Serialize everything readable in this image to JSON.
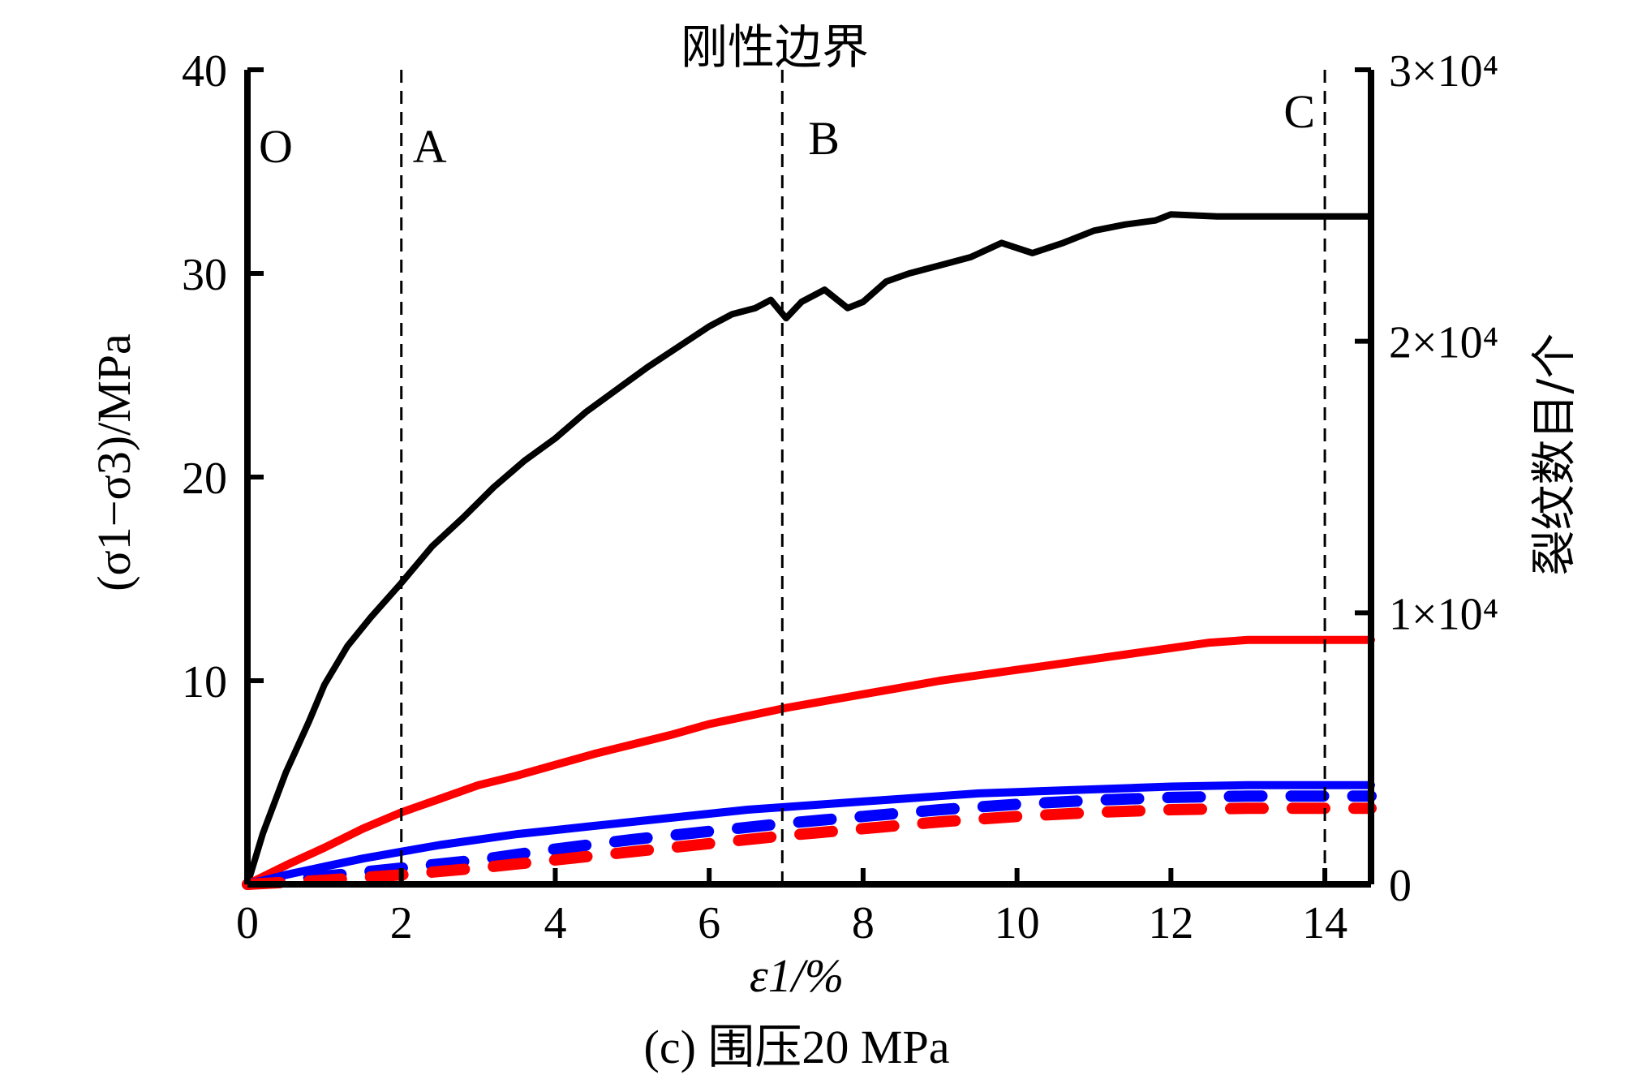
{
  "chart_data": {
    "type": "line",
    "title": "刚性边界",
    "caption": "(c) 围压20 MPa",
    "xlabel": "ε1/%",
    "ylabel_left": "(σ1−σ3)/MPa",
    "ylabel_right": "裂纹数目/个",
    "xlim": [
      0,
      14.6
    ],
    "ylim_left": [
      0,
      40
    ],
    "ylim_right": [
      0,
      30000
    ],
    "x_ticks": [
      "0",
      "2",
      "4",
      "6",
      "8",
      "10",
      "12",
      "14"
    ],
    "y_left_ticks": [
      "10",
      "20",
      "30",
      "40"
    ],
    "y_right_ticks": [
      "0",
      "1×10⁴",
      "2×10⁴",
      "3×10⁴"
    ],
    "stage_lines": [
      {
        "label": "O",
        "x": 0
      },
      {
        "label": "A",
        "x": 2.0
      },
      {
        "label": "B",
        "x": 6.95
      },
      {
        "label": "C",
        "x": 14.0
      }
    ],
    "series": [
      {
        "axis": "left",
        "style": "solid",
        "color": "#000000",
        "x": [
          0,
          0.2,
          0.5,
          0.8,
          1.0,
          1.3,
          1.6,
          2.0,
          2.4,
          2.8,
          3.2,
          3.6,
          4.0,
          4.4,
          4.8,
          5.2,
          5.6,
          6.0,
          6.3,
          6.6,
          6.8,
          7.0,
          7.2,
          7.5,
          7.8,
          8.0,
          8.3,
          8.6,
          9.0,
          9.4,
          9.8,
          10.2,
          10.6,
          11.0,
          11.4,
          11.8,
          12.0,
          12.6,
          13.0,
          14.0,
          14.6
        ],
        "values": [
          0,
          2.5,
          5.5,
          8.0,
          9.8,
          11.7,
          13.1,
          14.8,
          16.6,
          18.0,
          19.5,
          20.8,
          21.9,
          23.2,
          24.3,
          25.4,
          26.4,
          27.4,
          28.0,
          28.3,
          28.7,
          27.8,
          28.6,
          29.2,
          28.3,
          28.6,
          29.6,
          30.0,
          30.4,
          30.8,
          31.5,
          31.0,
          31.5,
          32.1,
          32.4,
          32.6,
          32.9,
          32.8,
          32.8,
          32.8,
          32.8
        ]
      },
      {
        "axis": "right",
        "style": "solid",
        "color": "#ff0000",
        "x": [
          0,
          0.5,
          1.0,
          1.5,
          2.0,
          2.5,
          3.0,
          3.5,
          4.0,
          4.5,
          5.0,
          5.5,
          6.0,
          6.5,
          7.0,
          7.5,
          8.0,
          8.5,
          9.0,
          9.5,
          10.0,
          10.5,
          11.0,
          11.5,
          12.0,
          12.5,
          13.0,
          14.0,
          14.6
        ],
        "values": [
          0,
          700,
          1350,
          2050,
          2650,
          3150,
          3650,
          4000,
          4400,
          4800,
          5150,
          5500,
          5900,
          6200,
          6500,
          6750,
          7000,
          7250,
          7500,
          7700,
          7900,
          8100,
          8300,
          8500,
          8700,
          8900,
          9000,
          9000,
          9000
        ]
      },
      {
        "axis": "right",
        "style": "solid",
        "color": "#0000ff",
        "x": [
          0,
          0.5,
          1.0,
          1.5,
          2.0,
          2.5,
          3.0,
          3.5,
          4.0,
          4.5,
          5.0,
          5.5,
          6.0,
          6.5,
          7.0,
          7.5,
          8.0,
          8.5,
          9.0,
          9.5,
          10.0,
          10.5,
          11.0,
          11.5,
          12.0,
          13.0,
          14.0,
          14.6
        ],
        "values": [
          0,
          350,
          650,
          950,
          1200,
          1450,
          1650,
          1850,
          2000,
          2150,
          2300,
          2450,
          2600,
          2750,
          2850,
          2950,
          3050,
          3150,
          3250,
          3350,
          3400,
          3450,
          3500,
          3550,
          3600,
          3650,
          3650,
          3650
        ]
      },
      {
        "axis": "right",
        "style": "dashed",
        "color": "#0000ff",
        "x": [
          0,
          1.0,
          2.0,
          3.0,
          4.0,
          5.0,
          6.0,
          7.0,
          8.0,
          9.0,
          10.0,
          11.0,
          12.0,
          13.0,
          14.0,
          14.6
        ],
        "values": [
          0,
          300,
          600,
          900,
          1300,
          1650,
          1950,
          2250,
          2500,
          2750,
          2950,
          3100,
          3200,
          3250,
          3250,
          3250
        ]
      },
      {
        "axis": "right",
        "style": "dashed",
        "color": "#ff0000",
        "x": [
          0,
          1.0,
          2.0,
          3.0,
          4.0,
          5.0,
          6.0,
          7.0,
          8.0,
          9.0,
          10.0,
          11.0,
          12.0,
          13.0,
          14.0,
          14.6
        ],
        "values": [
          0,
          150,
          350,
          600,
          900,
          1200,
          1500,
          1800,
          2050,
          2300,
          2500,
          2650,
          2750,
          2800,
          2800,
          2800
        ]
      }
    ]
  }
}
